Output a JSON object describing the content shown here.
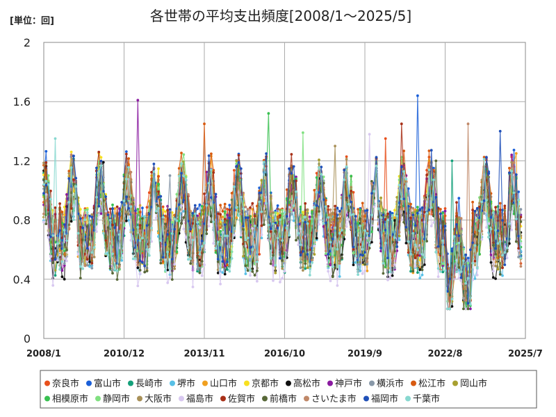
{
  "unit_label": "[単位：回]",
  "chart_data": {
    "type": "line",
    "title": "各世帯の平均支出頻度[2008/1～2025/5]",
    "xlabel": "",
    "ylabel": "",
    "ylim": [
      0,
      2
    ],
    "yticks": [
      "0",
      "0.4",
      "0.8",
      "1.2",
      "1.6",
      "2"
    ],
    "x_start": "2008/1",
    "x_end": "2025/7",
    "xticks": [
      "2008/1",
      "2010/12",
      "2013/11",
      "2016/10",
      "2019/9",
      "2022/8",
      "2025/7"
    ],
    "grid": true,
    "legend_position": "bottom",
    "series": [
      {
        "name": "奈良市",
        "color": "#e8501c",
        "offset": 0.02,
        "peak": 1.35
      },
      {
        "name": "富山市",
        "color": "#1a5fd8",
        "offset": 0.05,
        "peak": 1.64
      },
      {
        "name": "長崎市",
        "color": "#14a07a",
        "offset": -0.02,
        "peak": 1.2
      },
      {
        "name": "堺市",
        "color": "#58c0e6",
        "offset": -0.04,
        "peak": 1.15
      },
      {
        "name": "山口市",
        "color": "#f0a020",
        "offset": 0.0,
        "peak": 1.25
      },
      {
        "name": "京都市",
        "color": "#f8e020",
        "offset": 0.03,
        "peak": 1.26
      },
      {
        "name": "高松市",
        "color": "#101010",
        "offset": -0.06,
        "peak": 1.19
      },
      {
        "name": "神戸市",
        "color": "#8a1aa0",
        "offset": 0.01,
        "peak": 1.61
      },
      {
        "name": "横浜市",
        "color": "#8898a8",
        "offset": 0.0,
        "peak": 1.1
      },
      {
        "name": "松江市",
        "color": "#d85a10",
        "offset": 0.04,
        "peak": 1.45
      },
      {
        "name": "岡山市",
        "color": "#a8a030",
        "offset": -0.01,
        "peak": 1.2
      },
      {
        "name": "相模原市",
        "color": "#38c050",
        "offset": 0.02,
        "peak": 1.52
      },
      {
        "name": "静岡市",
        "color": "#80e080",
        "offset": 0.01,
        "peak": 1.39
      },
      {
        "name": "大阪市",
        "color": "#a89058",
        "offset": 0.0,
        "peak": 1.3
      },
      {
        "name": "福島市",
        "color": "#d8c8f0",
        "offset": -0.1,
        "peak": 1.38
      },
      {
        "name": "佐賀市",
        "color": "#a83018",
        "offset": 0.03,
        "peak": 1.45
      },
      {
        "name": "前橋市",
        "color": "#586838",
        "offset": -0.05,
        "peak": 1.2
      },
      {
        "name": "さいたま市",
        "color": "#c08868",
        "offset": 0.02,
        "peak": 1.45
      },
      {
        "name": "福岡市",
        "color": "#2050b8",
        "offset": 0.04,
        "peak": 1.4
      },
      {
        "name": "千葉市",
        "color": "#88d8d0",
        "offset": -0.02,
        "peak": 1.35
      }
    ]
  }
}
